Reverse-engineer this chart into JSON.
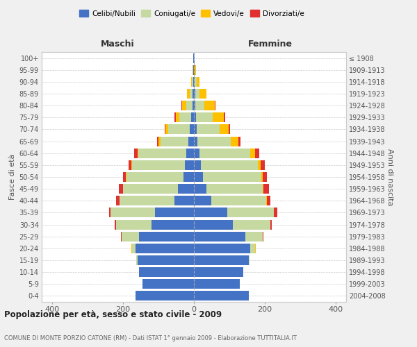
{
  "age_groups": [
    "0-4",
    "5-9",
    "10-14",
    "15-19",
    "20-24",
    "25-29",
    "30-34",
    "35-39",
    "40-44",
    "45-49",
    "50-54",
    "55-59",
    "60-64",
    "65-69",
    "70-74",
    "75-79",
    "80-84",
    "85-89",
    "90-94",
    "95-99",
    "100+"
  ],
  "birth_years": [
    "2004-2008",
    "1999-2003",
    "1994-1998",
    "1989-1993",
    "1984-1988",
    "1979-1983",
    "1974-1978",
    "1969-1973",
    "1964-1968",
    "1959-1963",
    "1954-1958",
    "1949-1953",
    "1944-1948",
    "1939-1943",
    "1934-1938",
    "1929-1933",
    "1924-1928",
    "1919-1923",
    "1914-1918",
    "1909-1913",
    "≤ 1908"
  ],
  "colors": {
    "celibi": "#4472c4",
    "coniugati": "#c5d9a0",
    "vedovi": "#ffc000",
    "divorziati": "#e03030"
  },
  "male": {
    "celibi": [
      165,
      145,
      155,
      160,
      165,
      155,
      120,
      110,
      55,
      45,
      30,
      25,
      22,
      15,
      12,
      7,
      4,
      3,
      2,
      1,
      1
    ],
    "coniugati": [
      0,
      0,
      0,
      2,
      10,
      50,
      100,
      125,
      155,
      155,
      160,
      150,
      135,
      80,
      60,
      35,
      18,
      8,
      3,
      1,
      0
    ],
    "vedovi": [
      0,
      0,
      0,
      0,
      2,
      0,
      0,
      0,
      1,
      1,
      2,
      2,
      3,
      5,
      8,
      10,
      12,
      8,
      3,
      1,
      0
    ],
    "divorziati": [
      0,
      0,
      0,
      0,
      0,
      2,
      3,
      4,
      8,
      12,
      8,
      8,
      8,
      5,
      3,
      2,
      1,
      0,
      0,
      0,
      0
    ]
  },
  "female": {
    "celibi": [
      155,
      130,
      140,
      155,
      160,
      145,
      110,
      95,
      50,
      35,
      25,
      20,
      15,
      10,
      8,
      5,
      4,
      3,
      2,
      1,
      1
    ],
    "coniugati": [
      0,
      0,
      0,
      2,
      12,
      50,
      105,
      130,
      155,
      160,
      165,
      160,
      145,
      95,
      65,
      48,
      25,
      12,
      5,
      1,
      0
    ],
    "vedovi": [
      0,
      0,
      0,
      0,
      2,
      0,
      0,
      1,
      1,
      2,
      5,
      8,
      12,
      20,
      25,
      32,
      30,
      20,
      8,
      3,
      1
    ],
    "divorziati": [
      0,
      0,
      0,
      0,
      0,
      2,
      5,
      10,
      10,
      15,
      12,
      12,
      12,
      7,
      4,
      3,
      2,
      0,
      0,
      0,
      0
    ]
  },
  "title": "Popolazione per età, sesso e stato civile - 2009",
  "subtitle": "COMUNE DI MONTE PORZIO CATONE (RM) - Dati ISTAT 1° gennaio 2009 - Elaborazione TUTTITALIA.IT",
  "xlabel_left": "Maschi",
  "xlabel_right": "Femmine",
  "ylabel_left": "Fasce di età",
  "ylabel_right": "Anni di nascita",
  "xlim": 430,
  "bg_color": "#f0f0f0",
  "plot_bg": "#ffffff",
  "legend_labels": [
    "Celibi/Nubili",
    "Coniugati/e",
    "Vedovi/e",
    "Divorziati/e"
  ]
}
